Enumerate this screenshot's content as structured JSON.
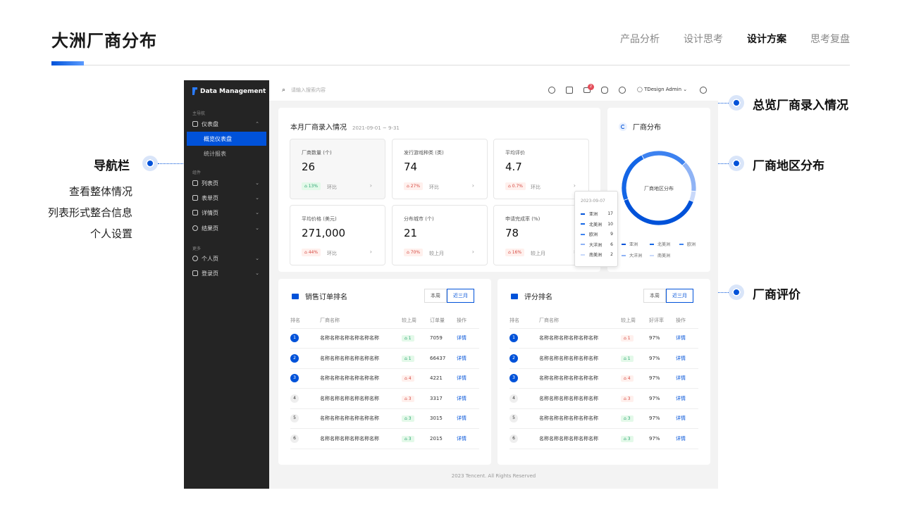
{
  "slide": {
    "title": "大洲厂商分布",
    "nav": [
      {
        "label": "产品分析",
        "active": false
      },
      {
        "label": "设计思考",
        "active": false
      },
      {
        "label": "设计方案",
        "active": true
      },
      {
        "label": "思考复盘",
        "active": false
      }
    ],
    "annotations": {
      "nav_title": "导航栏",
      "nav_points": [
        "查看整体情况",
        "列表形式整合信息",
        "个人设置"
      ],
      "overview": "总览厂商录入情况",
      "region": "厂商地区分布",
      "rating": "厂商评价"
    }
  },
  "app": {
    "logo": "Data Management",
    "sidebar": {
      "group_main": "主导航",
      "group_components": "组件",
      "group_more": "更多",
      "dashboard": "仪表盘",
      "overview": "概览仪表盘",
      "stats": "统计报表",
      "list": "列表页",
      "form": "表单页",
      "detail": "详情页",
      "result": "结果页",
      "personal": "个人页",
      "login": "登录页"
    },
    "topbar": {
      "search_placeholder": "请输入搜索内容",
      "notification_count": "2",
      "user": "TDesign Admin"
    },
    "entry": {
      "title": "本月厂商录入情况",
      "date": "2021-09-01 ~ 9-31",
      "stats": [
        {
          "label": "厂商数量 (个)",
          "value": "26",
          "tag": "13%",
          "trend": "up",
          "compare": "环比"
        },
        {
          "label": "发行游戏种类 (类)",
          "value": "74",
          "tag": "27%",
          "trend": "down",
          "compare": "环比"
        },
        {
          "label": "平均评价",
          "value": "4.7",
          "tag": "0.7%",
          "trend": "down",
          "compare": "环比"
        },
        {
          "label": "平均价格 (美元)",
          "value": "271,000",
          "tag": "44%",
          "trend": "down",
          "compare": "环比"
        },
        {
          "label": "分布城市 (个)",
          "value": "21",
          "tag": "70%",
          "trend": "down",
          "compare": "较上月"
        },
        {
          "label": "申请完成率 (%)",
          "value": "78",
          "tag": "16%",
          "trend": "down",
          "compare": "较上月"
        }
      ]
    },
    "distribution": {
      "title": "厂商分布",
      "center_label": "厂商地区分布",
      "tooltip_date": "2023-09-07",
      "colors": [
        "#0052d9",
        "#1466e6",
        "#3d82f0",
        "#8fb3f5",
        "#c9d9fa"
      ]
    },
    "sales": {
      "title": "销售订单排名",
      "tabs": [
        "本周",
        "近三月"
      ],
      "headers": [
        "排名",
        "厂商名称",
        "较上周",
        "订单量",
        "操作"
      ],
      "rows": [
        {
          "rank": "1",
          "name": "名称名称名称名称名称名称",
          "change": "1",
          "trend": "up",
          "amount": "7059",
          "action": "详情"
        },
        {
          "rank": "2",
          "name": "名称名称名称名称名称名称",
          "change": "1",
          "trend": "up",
          "amount": "66437",
          "action": "详情"
        },
        {
          "rank": "3",
          "name": "名称名称名称名称名称名称",
          "change": "4",
          "trend": "down",
          "amount": "4221",
          "action": "详情"
        },
        {
          "rank": "4",
          "name": "名称名称名称名称名称名称",
          "change": "3",
          "trend": "down",
          "amount": "3317",
          "action": "详情"
        },
        {
          "rank": "5",
          "name": "名称名称名称名称名称名称",
          "change": "3",
          "trend": "up",
          "amount": "3015",
          "action": "详情"
        },
        {
          "rank": "6",
          "name": "名称名称名称名称名称名称",
          "change": "3",
          "trend": "up",
          "amount": "2015",
          "action": "详情"
        }
      ]
    },
    "rating": {
      "title": "评分排名",
      "tabs": [
        "本周",
        "近三月"
      ],
      "headers": [
        "排名",
        "厂商名称",
        "较上周",
        "好评率",
        "操作"
      ],
      "rows": [
        {
          "rank": "1",
          "name": "名称名称名称名称名称名称",
          "change": "1",
          "trend": "down",
          "amount": "97%",
          "action": "详情"
        },
        {
          "rank": "2",
          "name": "名称名称名称名称名称名称",
          "change": "1",
          "trend": "up",
          "amount": "97%",
          "action": "详情"
        },
        {
          "rank": "3",
          "name": "名称名称名称名称名称名称",
          "change": "4",
          "trend": "down",
          "amount": "97%",
          "action": "详情"
        },
        {
          "rank": "4",
          "name": "名称名称名称名称名称名称",
          "change": "3",
          "trend": "down",
          "amount": "97%",
          "action": "详情"
        },
        {
          "rank": "5",
          "name": "名称名称名称名称名称名称",
          "change": "3",
          "trend": "up",
          "amount": "97%",
          "action": "详情"
        },
        {
          "rank": "6",
          "name": "名称名称名称名称名称名称",
          "change": "3",
          "trend": "up",
          "amount": "97%",
          "action": "详情"
        }
      ]
    },
    "footer": "2023 Tencent. All Rights Reserved"
  },
  "chart_data": {
    "type": "pie",
    "categories": [
      "亚洲",
      "北美洲",
      "欧洲",
      "大洋洲",
      "南美洲"
    ],
    "values": [
      17,
      10,
      9,
      6,
      2
    ],
    "title": "",
    "legend": "bottom"
  }
}
